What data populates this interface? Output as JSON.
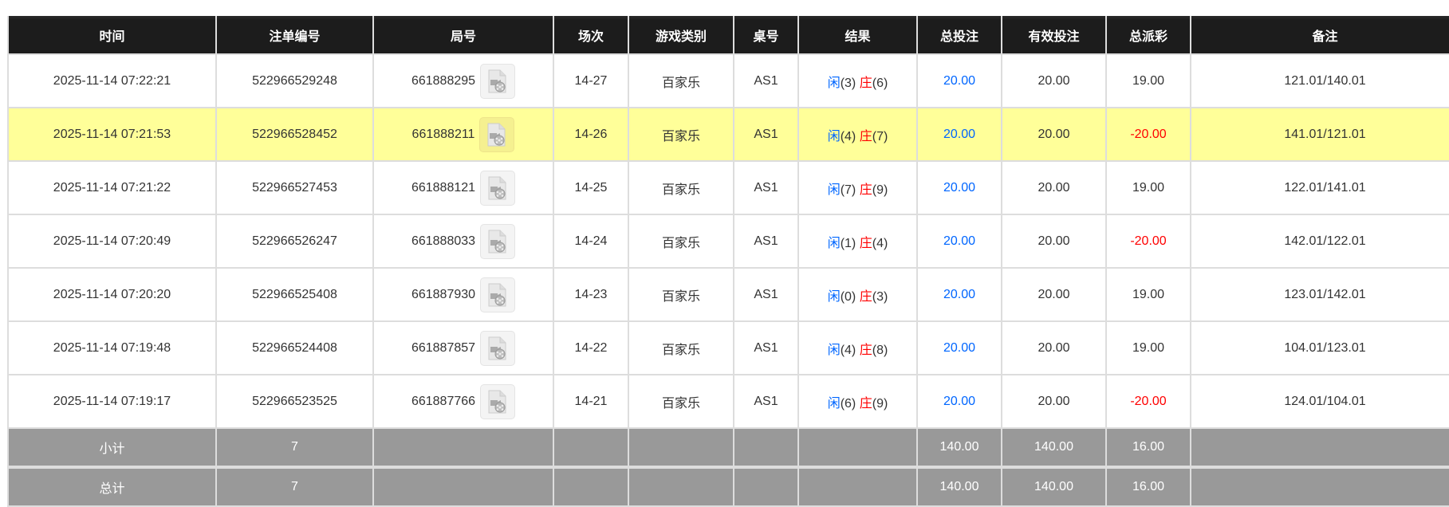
{
  "headers": [
    "时间",
    "注单编号",
    "局号",
    "场次",
    "游戏类别",
    "桌号",
    "结果",
    "总投注",
    "有效投注",
    "总派彩",
    "备注"
  ],
  "colors": {
    "header_bg": "#1c1c1c",
    "highlight_row": "#ffff99",
    "player": "#0066ff",
    "banker": "#ff0000",
    "negative": "#ff0000",
    "summary_bg": "#999999"
  },
  "rows": [
    {
      "time": "2025-11-14 07:22:21",
      "bet_id": "522966529248",
      "round": "661888295",
      "shoe": "14-27",
      "game": "百家乐",
      "table": "AS1",
      "player": "闲",
      "player_pts": "(3)",
      "banker": "庄",
      "banker_pts": "(6)",
      "total_bet": "20.00",
      "valid_bet": "20.00",
      "payout": "19.00",
      "note": "121.01/140.01"
    },
    {
      "time": "2025-11-14 07:21:53",
      "bet_id": "522966528452",
      "round": "661888211",
      "shoe": "14-26",
      "game": "百家乐",
      "table": "AS1",
      "player": "闲",
      "player_pts": "(4)",
      "banker": "庄",
      "banker_pts": "(7)",
      "total_bet": "20.00",
      "valid_bet": "20.00",
      "payout": "-20.00",
      "note": "141.01/121.01"
    },
    {
      "time": "2025-11-14 07:21:22",
      "bet_id": "522966527453",
      "round": "661888121",
      "shoe": "14-25",
      "game": "百家乐",
      "table": "AS1",
      "player": "闲",
      "player_pts": "(7)",
      "banker": "庄",
      "banker_pts": "(9)",
      "total_bet": "20.00",
      "valid_bet": "20.00",
      "payout": "19.00",
      "note": "122.01/141.01"
    },
    {
      "time": "2025-11-14 07:20:49",
      "bet_id": "522966526247",
      "round": "661888033",
      "shoe": "14-24",
      "game": "百家乐",
      "table": "AS1",
      "player": "闲",
      "player_pts": "(1)",
      "banker": "庄",
      "banker_pts": "(4)",
      "total_bet": "20.00",
      "valid_bet": "20.00",
      "payout": "-20.00",
      "note": "142.01/122.01"
    },
    {
      "time": "2025-11-14 07:20:20",
      "bet_id": "522966525408",
      "round": "661887930",
      "shoe": "14-23",
      "game": "百家乐",
      "table": "AS1",
      "player": "闲",
      "player_pts": "(0)",
      "banker": "庄",
      "banker_pts": "(3)",
      "total_bet": "20.00",
      "valid_bet": "20.00",
      "payout": "19.00",
      "note": "123.01/142.01"
    },
    {
      "time": "2025-11-14 07:19:48",
      "bet_id": "522966524408",
      "round": "661887857",
      "shoe": "14-22",
      "game": "百家乐",
      "table": "AS1",
      "player": "闲",
      "player_pts": "(4)",
      "banker": "庄",
      "banker_pts": "(8)",
      "total_bet": "20.00",
      "valid_bet": "20.00",
      "payout": "19.00",
      "note": "104.01/123.01"
    },
    {
      "time": "2025-11-14 07:19:17",
      "bet_id": "522966523525",
      "round": "661887766",
      "shoe": "14-21",
      "game": "百家乐",
      "table": "AS1",
      "player": "闲",
      "player_pts": "(6)",
      "banker": "庄",
      "banker_pts": "(9)",
      "total_bet": "20.00",
      "valid_bet": "20.00",
      "payout": "-20.00",
      "note": "124.01/104.01"
    }
  ],
  "highlighted_row": 1,
  "row_icon": "video-replay-icon",
  "subtotal": {
    "label": "小计",
    "count": "7",
    "total_bet": "140.00",
    "valid_bet": "140.00",
    "payout": "16.00"
  },
  "grand_total": {
    "label": "总计",
    "count": "7",
    "total_bet": "140.00",
    "valid_bet": "140.00",
    "payout": "16.00"
  }
}
